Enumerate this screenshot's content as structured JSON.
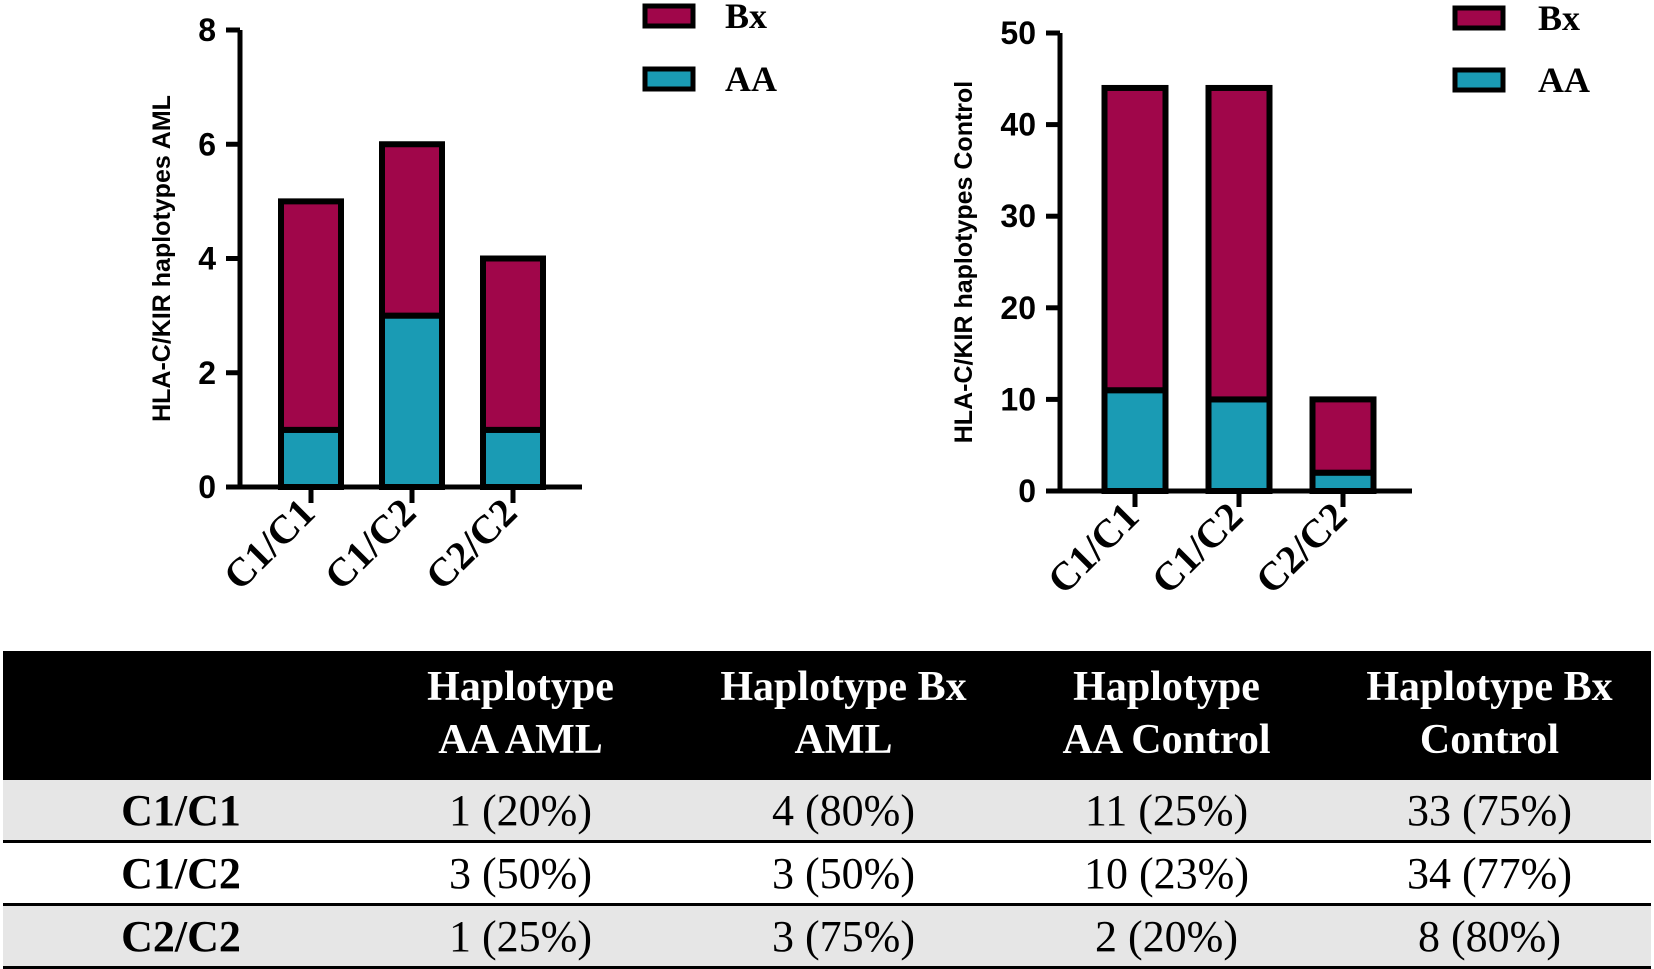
{
  "chart_data": [
    {
      "type": "bar",
      "stacked": true,
      "categories": [
        "C1/C1",
        "C1/C2",
        "C2/C2"
      ],
      "series": [
        {
          "name": "AA",
          "color": "#1a9bb4",
          "values": [
            1,
            3,
            1
          ]
        },
        {
          "name": "Bx",
          "color": "#a0064a",
          "values": [
            4,
            3,
            3
          ]
        }
      ],
      "ylabel": "HLA-C/KIR haplotypes AML",
      "ylim": [
        0,
        8
      ],
      "yticks": [
        0,
        2,
        4,
        6,
        8
      ],
      "legend": [
        "Bx",
        "AA"
      ],
      "legend_position": "top-right"
    },
    {
      "type": "bar",
      "stacked": true,
      "categories": [
        "C1/C1",
        "C1/C2",
        "C2/C2"
      ],
      "series": [
        {
          "name": "AA",
          "color": "#1a9bb4",
          "values": [
            11,
            10,
            2
          ]
        },
        {
          "name": "Bx",
          "color": "#a0064a",
          "values": [
            33,
            34,
            8
          ]
        }
      ],
      "ylabel": "HLA-C/KIR haplotypes Control",
      "ylim": [
        0,
        50
      ],
      "yticks": [
        0,
        10,
        20,
        30,
        40,
        50
      ],
      "legend": [
        "Bx",
        "AA"
      ],
      "legend_position": "top-right"
    }
  ],
  "table": {
    "headers": [
      "",
      [
        "Haplotype",
        "AA AML"
      ],
      [
        "Haplotype Bx",
        "AML"
      ],
      [
        "Haplotype",
        "AA Control"
      ],
      [
        "Haplotype Bx",
        "Control"
      ]
    ],
    "rows": [
      {
        "label": "C1/C1",
        "cells": [
          "1 (20%)",
          "4 (80%)",
          "11 (25%)",
          "33 (75%)"
        ]
      },
      {
        "label": "C1/C2",
        "cells": [
          "3 (50%)",
          "3 (50%)",
          "10 (23%)",
          "34 (77%)"
        ]
      },
      {
        "label": "C2/C2",
        "cells": [
          "1 (25%)",
          "3 (75%)",
          "2 (20%)",
          "8 (80%)"
        ]
      }
    ]
  }
}
